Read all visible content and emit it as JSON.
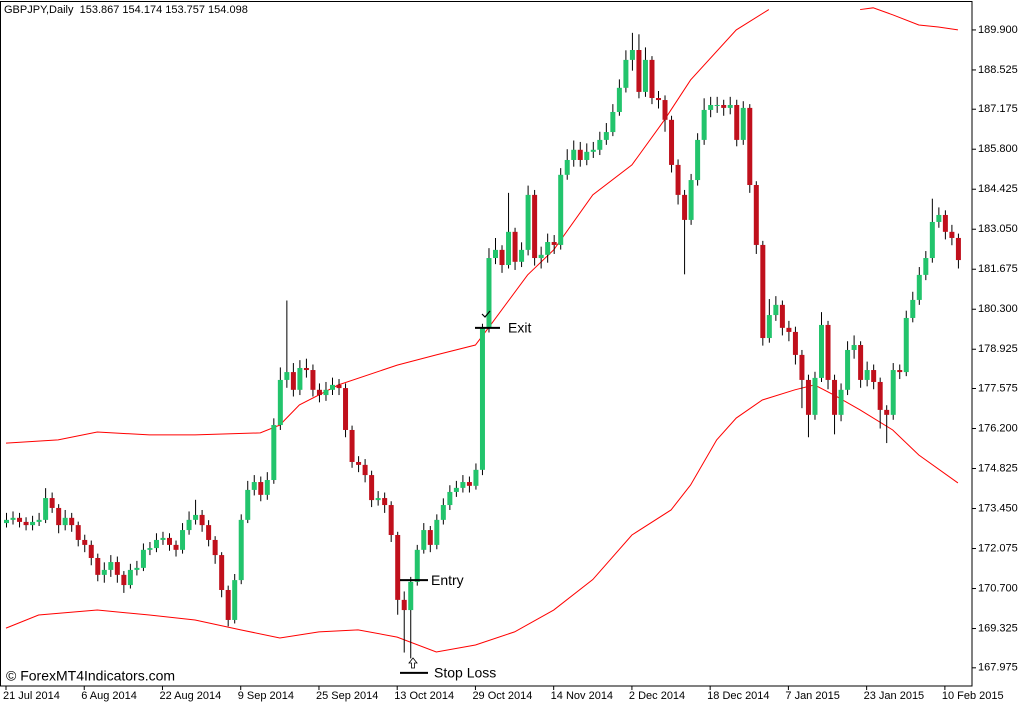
{
  "chart_data": {
    "type": "candlestick",
    "info": "GBPJPY,Daily  153.867 154.174 153.757 154.098",
    "watermark": "© ForexMT4Indicators.com",
    "bull_color": "#22c46c",
    "bear_color": "#c0101c",
    "wick_color": "#000000",
    "categories": [
      "21 Jul 2014",
      null,
      null,
      null,
      null,
      null,
      null,
      null,
      null,
      null,
      null,
      null,
      "6 Aug 2014",
      null,
      null,
      null,
      null,
      null,
      null,
      null,
      null,
      null,
      null,
      null,
      "22 Aug 2014",
      null,
      null,
      null,
      null,
      null,
      null,
      null,
      null,
      null,
      null,
      null,
      "9 Sep 2014",
      null,
      null,
      null,
      null,
      null,
      null,
      null,
      null,
      null,
      null,
      null,
      "25 Sep 2014",
      null,
      null,
      null,
      null,
      null,
      null,
      null,
      null,
      null,
      null,
      null,
      "13 Oct 2014",
      null,
      null,
      null,
      null,
      null,
      null,
      null,
      null,
      null,
      null,
      null,
      "29 Oct 2014",
      null,
      null,
      null,
      null,
      null,
      null,
      null,
      null,
      null,
      null,
      null,
      "14 Nov 2014",
      null,
      null,
      null,
      null,
      null,
      null,
      null,
      null,
      null,
      null,
      null,
      "2 Dec 2014",
      null,
      null,
      null,
      null,
      null,
      null,
      null,
      null,
      null,
      null,
      null,
      "18 Dec 2014",
      null,
      null,
      null,
      null,
      null,
      null,
      null,
      null,
      null,
      null,
      null,
      "7 Jan 2015",
      null,
      null,
      null,
      null,
      null,
      null,
      null,
      null,
      null,
      null,
      null,
      "23 Jan 2015",
      null,
      null,
      null,
      null,
      null,
      null,
      null,
      null,
      null,
      null,
      null,
      "10 Feb 2015",
      null,
      null
    ],
    "open": [
      172.95,
      173.06,
      173.13,
      172.99,
      172.88,
      172.99,
      173.06,
      173.81,
      173.47,
      172.88,
      173.13,
      172.88,
      172.37,
      172.2,
      171.75,
      171.17,
      171.34,
      171.61,
      171.17,
      170.82,
      171.34,
      171.41,
      172.03,
      172.09,
      172.37,
      172.44,
      172.2,
      172.03,
      172.71,
      173.06,
      173.23,
      172.88,
      172.37,
      171.85,
      170.65,
      169.62,
      170.99,
      173.06,
      174.09,
      174.36,
      173.92,
      174.43,
      176.32,
      177.87,
      178.14,
      177.53,
      178.28,
      178.21,
      177.53,
      177.35,
      177.53,
      177.7,
      177.59,
      176.15,
      175.05,
      174.95,
      174.6,
      173.74,
      173.81,
      173.57,
      172.54,
      170.31,
      169.96,
      170.93,
      172.03,
      172.71,
      172.2,
      173.06,
      173.57,
      174.02,
      174.16,
      174.36,
      174.23,
      174.78,
      179.66,
      182.06,
      182.34,
      181.82,
      182.96,
      181.93,
      182.34,
      184.23,
      182.06,
      182.17,
      182.61,
      182.51,
      184.92,
      185.43,
      185.78,
      185.43,
      185.71,
      185.78,
      186.12,
      186.39,
      187.08,
      187.91,
      188.87,
      189.21,
      187.77,
      188.87,
      187.56,
      187.49,
      186.81,
      185.26,
      184.23,
      183.37,
      184.74,
      186.12,
      187.15,
      187.32,
      187.32,
      187.22,
      187.32,
      186.12,
      187.22,
      184.57,
      182.51,
      179.31,
      180.1,
      180.45,
      179.66,
      179.52,
      178.73,
      177.87,
      176.67,
      177.94,
      179.76,
      177.87,
      176.67,
      177.53,
      178.9,
      179.07,
      177.87,
      178.21,
      177.8,
      176.84,
      176.67,
      178.21,
      178.14,
      180.0,
      180.62,
      181.48,
      182.06,
      183.3,
      183.54,
      182.96,
      182.75
    ],
    "high": [
      173.3,
      173.35,
      173.3,
      173.15,
      173.2,
      173.3,
      174.15,
      174.0,
      173.6,
      173.4,
      173.3,
      173.0,
      172.55,
      172.35,
      171.9,
      171.6,
      171.85,
      171.8,
      171.3,
      171.55,
      171.65,
      172.25,
      172.3,
      172.6,
      172.65,
      172.6,
      172.35,
      172.95,
      173.35,
      173.75,
      173.4,
      173.05,
      172.5,
      171.95,
      170.8,
      171.2,
      173.25,
      174.4,
      174.6,
      174.55,
      174.7,
      176.55,
      178.3,
      180.6,
      178.45,
      178.55,
      178.6,
      178.4,
      177.75,
      177.8,
      177.95,
      177.9,
      177.75,
      176.3,
      175.25,
      175.15,
      174.75,
      174.05,
      174.0,
      173.7,
      172.65,
      170.6,
      171.1,
      172.2,
      172.95,
      172.85,
      173.25,
      173.8,
      174.25,
      174.4,
      174.6,
      174.55,
      175.0,
      179.8,
      182.4,
      182.75,
      182.5,
      184.3,
      183.1,
      182.6,
      184.55,
      184.4,
      182.45,
      182.9,
      182.85,
      185.15,
      185.8,
      186.1,
      186.05,
      186.0,
      186.05,
      186.4,
      186.7,
      187.35,
      188.2,
      189.2,
      189.8,
      189.75,
      189.3,
      189.0,
      187.8,
      187.65,
      186.95,
      185.45,
      184.4,
      184.95,
      186.35,
      187.55,
      187.6,
      187.6,
      187.5,
      187.6,
      187.5,
      187.45,
      187.35,
      184.7,
      182.65,
      180.65,
      180.75,
      180.6,
      179.9,
      179.7,
      178.9,
      178.05,
      178.15,
      180.2,
      179.9,
      178.05,
      177.75,
      179.2,
      179.4,
      179.2,
      178.5,
      178.4,
      177.95,
      177.0,
      178.45,
      178.4,
      180.25,
      180.9,
      181.75,
      182.3,
      184.1,
      183.8,
      183.7,
      183.2,
      182.9
    ],
    "low": [
      172.8,
      172.9,
      172.8,
      172.7,
      172.7,
      172.85,
      172.95,
      173.3,
      172.6,
      172.7,
      172.65,
      172.15,
      171.95,
      171.5,
      170.95,
      170.9,
      171.1,
      170.9,
      170.55,
      170.7,
      171.15,
      171.3,
      171.85,
      171.95,
      172.2,
      172.0,
      171.8,
      171.9,
      172.55,
      172.9,
      172.65,
      172.15,
      171.55,
      170.4,
      169.4,
      169.5,
      170.85,
      172.95,
      173.9,
      173.7,
      173.75,
      174.3,
      176.15,
      177.6,
      177.3,
      177.35,
      177.95,
      177.3,
      177.1,
      177.15,
      177.35,
      177.35,
      175.9,
      174.85,
      174.7,
      174.35,
      173.5,
      173.55,
      173.3,
      172.3,
      169.8,
      168.5,
      168.3,
      170.8,
      171.9,
      171.95,
      172.05,
      172.9,
      173.4,
      173.85,
      174.0,
      174.0,
      174.1,
      174.6,
      179.5,
      181.85,
      181.55,
      181.7,
      181.65,
      181.75,
      182.15,
      181.8,
      181.7,
      181.9,
      182.2,
      182.35,
      184.75,
      185.2,
      185.2,
      185.25,
      185.5,
      185.6,
      185.95,
      186.25,
      186.95,
      187.75,
      188.5,
      187.55,
      187.6,
      187.35,
      187.2,
      186.4,
      185.0,
      183.9,
      181.5,
      183.2,
      184.55,
      185.95,
      186.9,
      187.05,
      186.95,
      187.0,
      185.9,
      185.95,
      184.3,
      182.2,
      179.05,
      179.15,
      179.9,
      179.4,
      179.2,
      178.4,
      176.9,
      175.9,
      176.5,
      177.8,
      177.55,
      176.0,
      176.45,
      177.35,
      178.6,
      177.6,
      177.65,
      177.55,
      176.2,
      175.7,
      176.5,
      177.9,
      178.0,
      179.85,
      180.45,
      181.3,
      181.9,
      183.1,
      182.7,
      182.5,
      181.7
    ],
    "close": [
      173.06,
      173.13,
      172.99,
      172.88,
      172.99,
      173.06,
      173.81,
      173.47,
      172.88,
      173.13,
      172.88,
      172.37,
      172.2,
      171.75,
      171.17,
      171.34,
      171.61,
      171.17,
      170.82,
      171.34,
      171.41,
      172.03,
      172.09,
      172.37,
      172.44,
      172.2,
      172.03,
      172.71,
      173.06,
      173.23,
      172.88,
      172.37,
      171.85,
      170.65,
      169.62,
      170.99,
      173.06,
      174.09,
      174.36,
      173.92,
      174.43,
      176.32,
      177.87,
      178.14,
      177.53,
      178.28,
      178.21,
      177.53,
      177.35,
      177.53,
      177.7,
      177.59,
      176.15,
      175.05,
      174.95,
      174.6,
      173.74,
      173.81,
      173.57,
      172.54,
      170.31,
      169.96,
      170.93,
      172.03,
      172.71,
      172.2,
      173.06,
      173.57,
      174.02,
      174.16,
      174.36,
      174.23,
      174.78,
      179.66,
      182.06,
      182.34,
      181.82,
      182.96,
      181.93,
      182.34,
      184.23,
      182.06,
      182.17,
      182.61,
      182.51,
      184.92,
      185.43,
      185.78,
      185.43,
      185.71,
      185.78,
      186.12,
      186.39,
      187.08,
      187.91,
      188.87,
      189.21,
      187.77,
      188.87,
      187.56,
      187.49,
      186.81,
      185.26,
      184.23,
      183.37,
      184.74,
      186.12,
      187.15,
      187.32,
      187.32,
      187.22,
      187.32,
      186.12,
      187.22,
      184.57,
      182.51,
      179.31,
      180.1,
      180.45,
      179.66,
      179.52,
      178.73,
      177.87,
      176.67,
      177.94,
      179.76,
      177.87,
      176.67,
      177.53,
      178.9,
      179.07,
      177.87,
      178.21,
      177.8,
      176.84,
      176.67,
      178.21,
      178.14,
      180.0,
      180.62,
      181.48,
      182.06,
      183.3,
      183.54,
      182.96,
      182.75,
      181.99
    ],
    "bands": [
      {
        "color": "#ff0000",
        "x": [
          0,
          8,
          14,
          22,
          29,
          39,
          42,
          45,
          51,
          60,
          66,
          72,
          74,
          80,
          84,
          90,
          96,
          101,
          105,
          112,
          117,
          124,
          131,
          133,
          136,
          140,
          143,
          146
        ],
        "values": [
          175.7,
          175.81,
          176.08,
          175.98,
          175.98,
          176.05,
          176.32,
          177.01,
          177.7,
          178.38,
          178.73,
          179.07,
          179.66,
          181.48,
          182.34,
          184.23,
          185.26,
          186.81,
          188.18,
          189.9,
          190.6,
          null,
          190.6,
          190.66,
          190.42,
          190.07,
          190.0,
          189.9
        ]
      },
      {
        "color": "#ff0000",
        "x": [
          0,
          5,
          14,
          22,
          29,
          36,
          42,
          48,
          54,
          60,
          66,
          72,
          78,
          84,
          90,
          96,
          102,
          105,
          109,
          112,
          116,
          121,
          124,
          127,
          131,
          136,
          140,
          146
        ],
        "values": [
          169.34,
          169.79,
          169.96,
          169.79,
          169.62,
          169.28,
          169.0,
          169.21,
          169.28,
          169.03,
          168.52,
          168.76,
          169.21,
          169.96,
          171.01,
          172.54,
          173.4,
          174.26,
          175.81,
          176.56,
          177.18,
          177.53,
          177.7,
          177.35,
          176.84,
          176.15,
          175.29,
          174.33
        ]
      }
    ],
    "annotations": [
      {
        "text": "Exit",
        "value": 179.66
      },
      {
        "text": "Entry",
        "value": 170.99
      },
      {
        "text": "Stop Loss",
        "value": 167.8
      }
    ],
    "ylim": [
      167.35,
      190.86
    ],
    "yticks": [
      {
        "value": 189.9,
        "label": "189.900"
      },
      {
        "value": 188.525,
        "label": "188.525"
      },
      {
        "value": 187.175,
        "label": "187.175"
      },
      {
        "value": 185.8,
        "label": "185.800"
      },
      {
        "value": 184.425,
        "label": "184.425"
      },
      {
        "value": 183.05,
        "label": "183.050"
      },
      {
        "value": 181.675,
        "label": "181.675"
      },
      {
        "value": 180.3,
        "label": "180.300"
      },
      {
        "value": 178.925,
        "label": "178.925"
      },
      {
        "value": 177.575,
        "label": "177.575"
      },
      {
        "value": 176.2,
        "label": "176.200"
      },
      {
        "value": 174.825,
        "label": "174.825"
      },
      {
        "value": 173.45,
        "label": "173.450"
      },
      {
        "value": 172.075,
        "label": "172.075"
      },
      {
        "value": 170.7,
        "label": "170.700"
      },
      {
        "value": 169.325,
        "label": "169.325"
      },
      {
        "value": 167.975,
        "label": "167.975"
      }
    ]
  }
}
